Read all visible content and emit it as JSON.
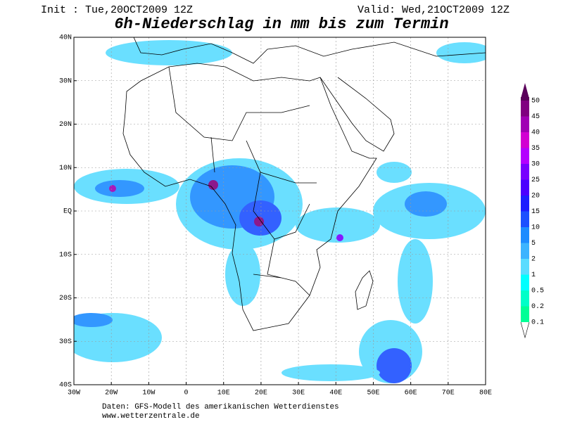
{
  "header": {
    "init": "Init : Tue,20OCT2009 12Z",
    "valid": "Valid: Wed,21OCT2009 12Z",
    "title": "6h-Niederschlag in mm bis zum Termin"
  },
  "map": {
    "lat_labels": [
      "40N",
      "30N",
      "20N",
      "10N",
      "EQ",
      "10S",
      "20S",
      "30S",
      "40S"
    ],
    "lon_labels": [
      "30W",
      "20W",
      "10W",
      "0",
      "10E",
      "20E",
      "30E",
      "40E",
      "50E",
      "60E",
      "70E",
      "80E"
    ]
  },
  "legend": {
    "levels": [
      "50",
      "45",
      "40",
      "35",
      "30",
      "25",
      "20",
      "15",
      "10",
      "5",
      "2",
      "1",
      "0.5",
      "0.2",
      "0.1"
    ],
    "colors": [
      "#5a005a",
      "#800080",
      "#a000b4",
      "#d200d2",
      "#b400ff",
      "#7800ff",
      "#4b00ff",
      "#1e1eff",
      "#1e50ff",
      "#1e8cff",
      "#3cb4ff",
      "#5adcff",
      "#00ffff",
      "#00ffc8",
      "#00ff96"
    ]
  },
  "footer": {
    "source": "Daten: GFS-Modell des amerikanischen Wetterdienstes",
    "url": "www.wetterzentrale.de"
  }
}
